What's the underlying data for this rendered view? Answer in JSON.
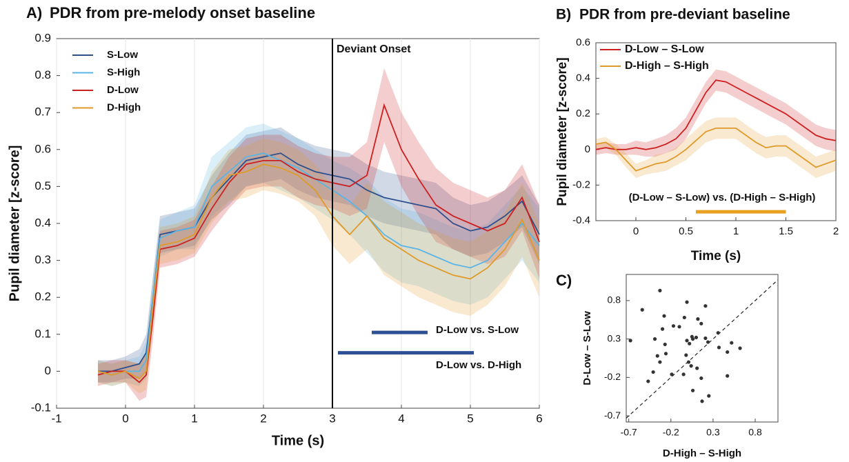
{
  "chart_data": [
    {
      "type": "line",
      "panel": "A)",
      "title": "PDR from pre-melody onset baseline",
      "xlabel": "Time (s)",
      "ylabel": "Pupil diameter [z-score]",
      "xlim": [
        -1,
        6
      ],
      "ylim": [
        -0.1,
        0.9
      ],
      "xticks": [
        -1,
        0,
        1,
        2,
        3,
        4,
        5,
        6
      ],
      "yticks": [
        -0.1,
        0,
        0.1,
        0.2,
        0.3,
        0.4,
        0.5,
        0.6,
        0.7,
        0.8,
        0.9
      ],
      "grid": "x",
      "legend": "upper left",
      "vline": {
        "x": 3,
        "label": "Deviant Onset"
      },
      "x": [
        -0.4,
        -0.2,
        0,
        0.2,
        0.3,
        0.4,
        0.5,
        0.75,
        1,
        1.25,
        1.5,
        1.75,
        2,
        2.25,
        2.5,
        2.75,
        3,
        3.25,
        3.5,
        3.75,
        4,
        4.25,
        4.5,
        4.75,
        5,
        5.25,
        5.5,
        5.75,
        6
      ],
      "series": [
        {
          "name": "S-Low",
          "color": "#2d4f8e",
          "values": [
            0,
            0,
            0.01,
            0.02,
            0.05,
            0.2,
            0.37,
            0.38,
            0.39,
            0.47,
            0.52,
            0.57,
            0.58,
            0.59,
            0.56,
            0.54,
            0.53,
            0.52,
            0.49,
            0.47,
            0.46,
            0.45,
            0.44,
            0.4,
            0.38,
            0.39,
            0.42,
            0.46,
            0.37
          ],
          "error": [
            0.03,
            0.03,
            0.03,
            0.04,
            0.05,
            0.06,
            0.05,
            0.05,
            0.05,
            0.06,
            0.07,
            0.07,
            0.07,
            0.07,
            0.07,
            0.07,
            0.07,
            0.07,
            0.07,
            0.07,
            0.07,
            0.07,
            0.07,
            0.07,
            0.07,
            0.07,
            0.07,
            0.07,
            0.08
          ]
        },
        {
          "name": "S-High",
          "color": "#5ab4e5",
          "values": [
            0,
            -0.01,
            0,
            0,
            0.03,
            0.2,
            0.36,
            0.38,
            0.39,
            0.5,
            0.54,
            0.58,
            0.59,
            0.57,
            0.55,
            0.52,
            0.49,
            0.46,
            0.42,
            0.37,
            0.34,
            0.33,
            0.31,
            0.29,
            0.28,
            0.3,
            0.35,
            0.4,
            0.34
          ],
          "error": [
            0.03,
            0.03,
            0.03,
            0.04,
            0.05,
            0.06,
            0.05,
            0.05,
            0.06,
            0.08,
            0.08,
            0.08,
            0.08,
            0.08,
            0.08,
            0.08,
            0.08,
            0.09,
            0.1,
            0.1,
            0.1,
            0.1,
            0.1,
            0.1,
            0.1,
            0.1,
            0.1,
            0.1,
            0.1
          ]
        },
        {
          "name": "D-Low",
          "color": "#cc2020",
          "values": [
            -0.01,
            0,
            0,
            -0.03,
            -0.01,
            0.15,
            0.33,
            0.34,
            0.36,
            0.44,
            0.51,
            0.56,
            0.57,
            0.57,
            0.54,
            0.52,
            0.51,
            0.5,
            0.53,
            0.72,
            0.6,
            0.52,
            0.45,
            0.42,
            0.4,
            0.38,
            0.4,
            0.47,
            0.35
          ],
          "error": [
            0.03,
            0.03,
            0.03,
            0.05,
            0.06,
            0.06,
            0.05,
            0.05,
            0.05,
            0.06,
            0.07,
            0.07,
            0.07,
            0.07,
            0.07,
            0.07,
            0.07,
            0.08,
            0.09,
            0.1,
            0.1,
            0.1,
            0.1,
            0.09,
            0.09,
            0.09,
            0.09,
            0.09,
            0.1
          ]
        },
        {
          "name": "D-High",
          "color": "#e09a2a",
          "values": [
            0,
            -0.01,
            0,
            -0.02,
            0,
            0.18,
            0.34,
            0.35,
            0.37,
            0.47,
            0.53,
            0.54,
            0.56,
            0.55,
            0.53,
            0.49,
            0.42,
            0.37,
            0.42,
            0.36,
            0.33,
            0.3,
            0.28,
            0.26,
            0.25,
            0.28,
            0.33,
            0.41,
            0.3
          ],
          "error": [
            0.03,
            0.03,
            0.03,
            0.04,
            0.05,
            0.06,
            0.05,
            0.05,
            0.05,
            0.07,
            0.07,
            0.07,
            0.07,
            0.07,
            0.07,
            0.07,
            0.08,
            0.08,
            0.09,
            0.1,
            0.1,
            0.1,
            0.1,
            0.1,
            0.1,
            0.1,
            0.1,
            0.1,
            0.1
          ]
        }
      ],
      "significance_bars": [
        {
          "label": "D-Low vs. S-Low",
          "x": [
            3.57,
            4.38
          ],
          "y": 0.105,
          "color": "#2f4f94"
        },
        {
          "label": "D-Low vs. D-High",
          "x": [
            3.08,
            5.05
          ],
          "y": 0.05,
          "color": "#2f4f94"
        }
      ]
    },
    {
      "type": "line",
      "panel": "B)",
      "title": "PDR from pre-deviant baseline",
      "xlabel": "Time (s)",
      "ylabel": "Pupil diameter [z-score]",
      "xlim": [
        -0.4,
        2
      ],
      "ylim": [
        -0.4,
        0.6
      ],
      "xticks": [
        0,
        0.5,
        1,
        1.5,
        2
      ],
      "yticks": [
        -0.4,
        -0.2,
        0,
        0.2,
        0.4,
        0.6
      ],
      "legend": "upper left",
      "x": [
        -0.4,
        -0.3,
        -0.2,
        -0.1,
        0,
        0.1,
        0.2,
        0.3,
        0.4,
        0.5,
        0.6,
        0.7,
        0.8,
        0.9,
        1,
        1.1,
        1.2,
        1.3,
        1.4,
        1.5,
        1.6,
        1.7,
        1.8,
        1.9,
        2
      ],
      "series": [
        {
          "name": "D-Low – S-Low",
          "color": "#cc2020",
          "values": [
            0,
            0.01,
            0,
            0,
            0.01,
            0,
            0.01,
            0.03,
            0.06,
            0.12,
            0.22,
            0.32,
            0.39,
            0.38,
            0.35,
            0.32,
            0.29,
            0.26,
            0.23,
            0.2,
            0.16,
            0.12,
            0.08,
            0.06,
            0.05
          ],
          "error": [
            0.03,
            0.03,
            0.03,
            0.03,
            0.04,
            0.04,
            0.05,
            0.05,
            0.06,
            0.06,
            0.06,
            0.06,
            0.06,
            0.06,
            0.06,
            0.06,
            0.06,
            0.06,
            0.06,
            0.06,
            0.06,
            0.06,
            0.06,
            0.06,
            0.06
          ]
        },
        {
          "name": "D-High – S-High",
          "color": "#e09a2a",
          "values": [
            0.03,
            0.04,
            0,
            -0.06,
            -0.12,
            -0.1,
            -0.08,
            -0.07,
            -0.04,
            0,
            0.05,
            0.1,
            0.12,
            0.12,
            0.12,
            0.08,
            0.04,
            0.01,
            0.02,
            0.02,
            -0.02,
            -0.06,
            -0.1,
            -0.08,
            -0.06
          ],
          "error": [
            0.03,
            0.03,
            0.03,
            0.04,
            0.04,
            0.04,
            0.05,
            0.05,
            0.05,
            0.06,
            0.06,
            0.06,
            0.06,
            0.06,
            0.06,
            0.06,
            0.06,
            0.06,
            0.06,
            0.06,
            0.06,
            0.06,
            0.06,
            0.06,
            0.06
          ]
        }
      ],
      "significance_bars": [
        {
          "label": "(D-Low –  S-Low) vs. (D-High – S-High)",
          "x": [
            0.6,
            1.5
          ],
          "y": -0.35,
          "color": "#e8a020"
        }
      ]
    },
    {
      "type": "scatter",
      "panel": "C)",
      "xlabel": "D-High – S-High",
      "ylabel": "D-Low – S-Low",
      "xlim": [
        -0.73,
        1.07
      ],
      "ylim": [
        -0.78,
        1.14
      ],
      "xticks": [
        -0.7,
        -0.2,
        0.3,
        0.8
      ],
      "yticks": [
        -0.7,
        -0.2,
        0.3,
        0.8
      ],
      "diagonal": true,
      "color": "#333333",
      "x": [
        -0.68,
        -0.54,
        -0.33,
        -0.28,
        -0.01,
        0.21,
        0.12,
        0.16,
        -0.04,
        -0.1,
        -0.17,
        -0.3,
        -0.39,
        -0.01,
        0.05,
        0.06,
        0.02,
        0.1,
        0.21,
        0.24,
        0.37,
        0.36,
        0.47,
        0.52,
        0.62,
        0.47,
        -0.27,
        -0.26,
        -0.36,
        -0.33,
        -0.41,
        -0.47,
        -0.19,
        -0.05,
        0.01,
        -0.02,
        0.04,
        0.16,
        0.06,
        0.17,
        0.25,
        0.11
      ],
      "y": [
        0.28,
        0.68,
        0.93,
        0.6,
        0.78,
        0.73,
        0.56,
        0.5,
        0.58,
        0.46,
        0.47,
        0.43,
        0.3,
        0.28,
        0.33,
        0.3,
        0.24,
        0.32,
        0.31,
        0.26,
        0.19,
        0.38,
        0.13,
        0.25,
        0.18,
        -0.18,
        0.23,
        0.11,
        0.08,
        0,
        -0.13,
        -0.25,
        -0.16,
        -0.16,
        0,
        0.09,
        -0.05,
        -0.21,
        -0.37,
        -0.51,
        -0.44,
        -0.08
      ]
    }
  ]
}
